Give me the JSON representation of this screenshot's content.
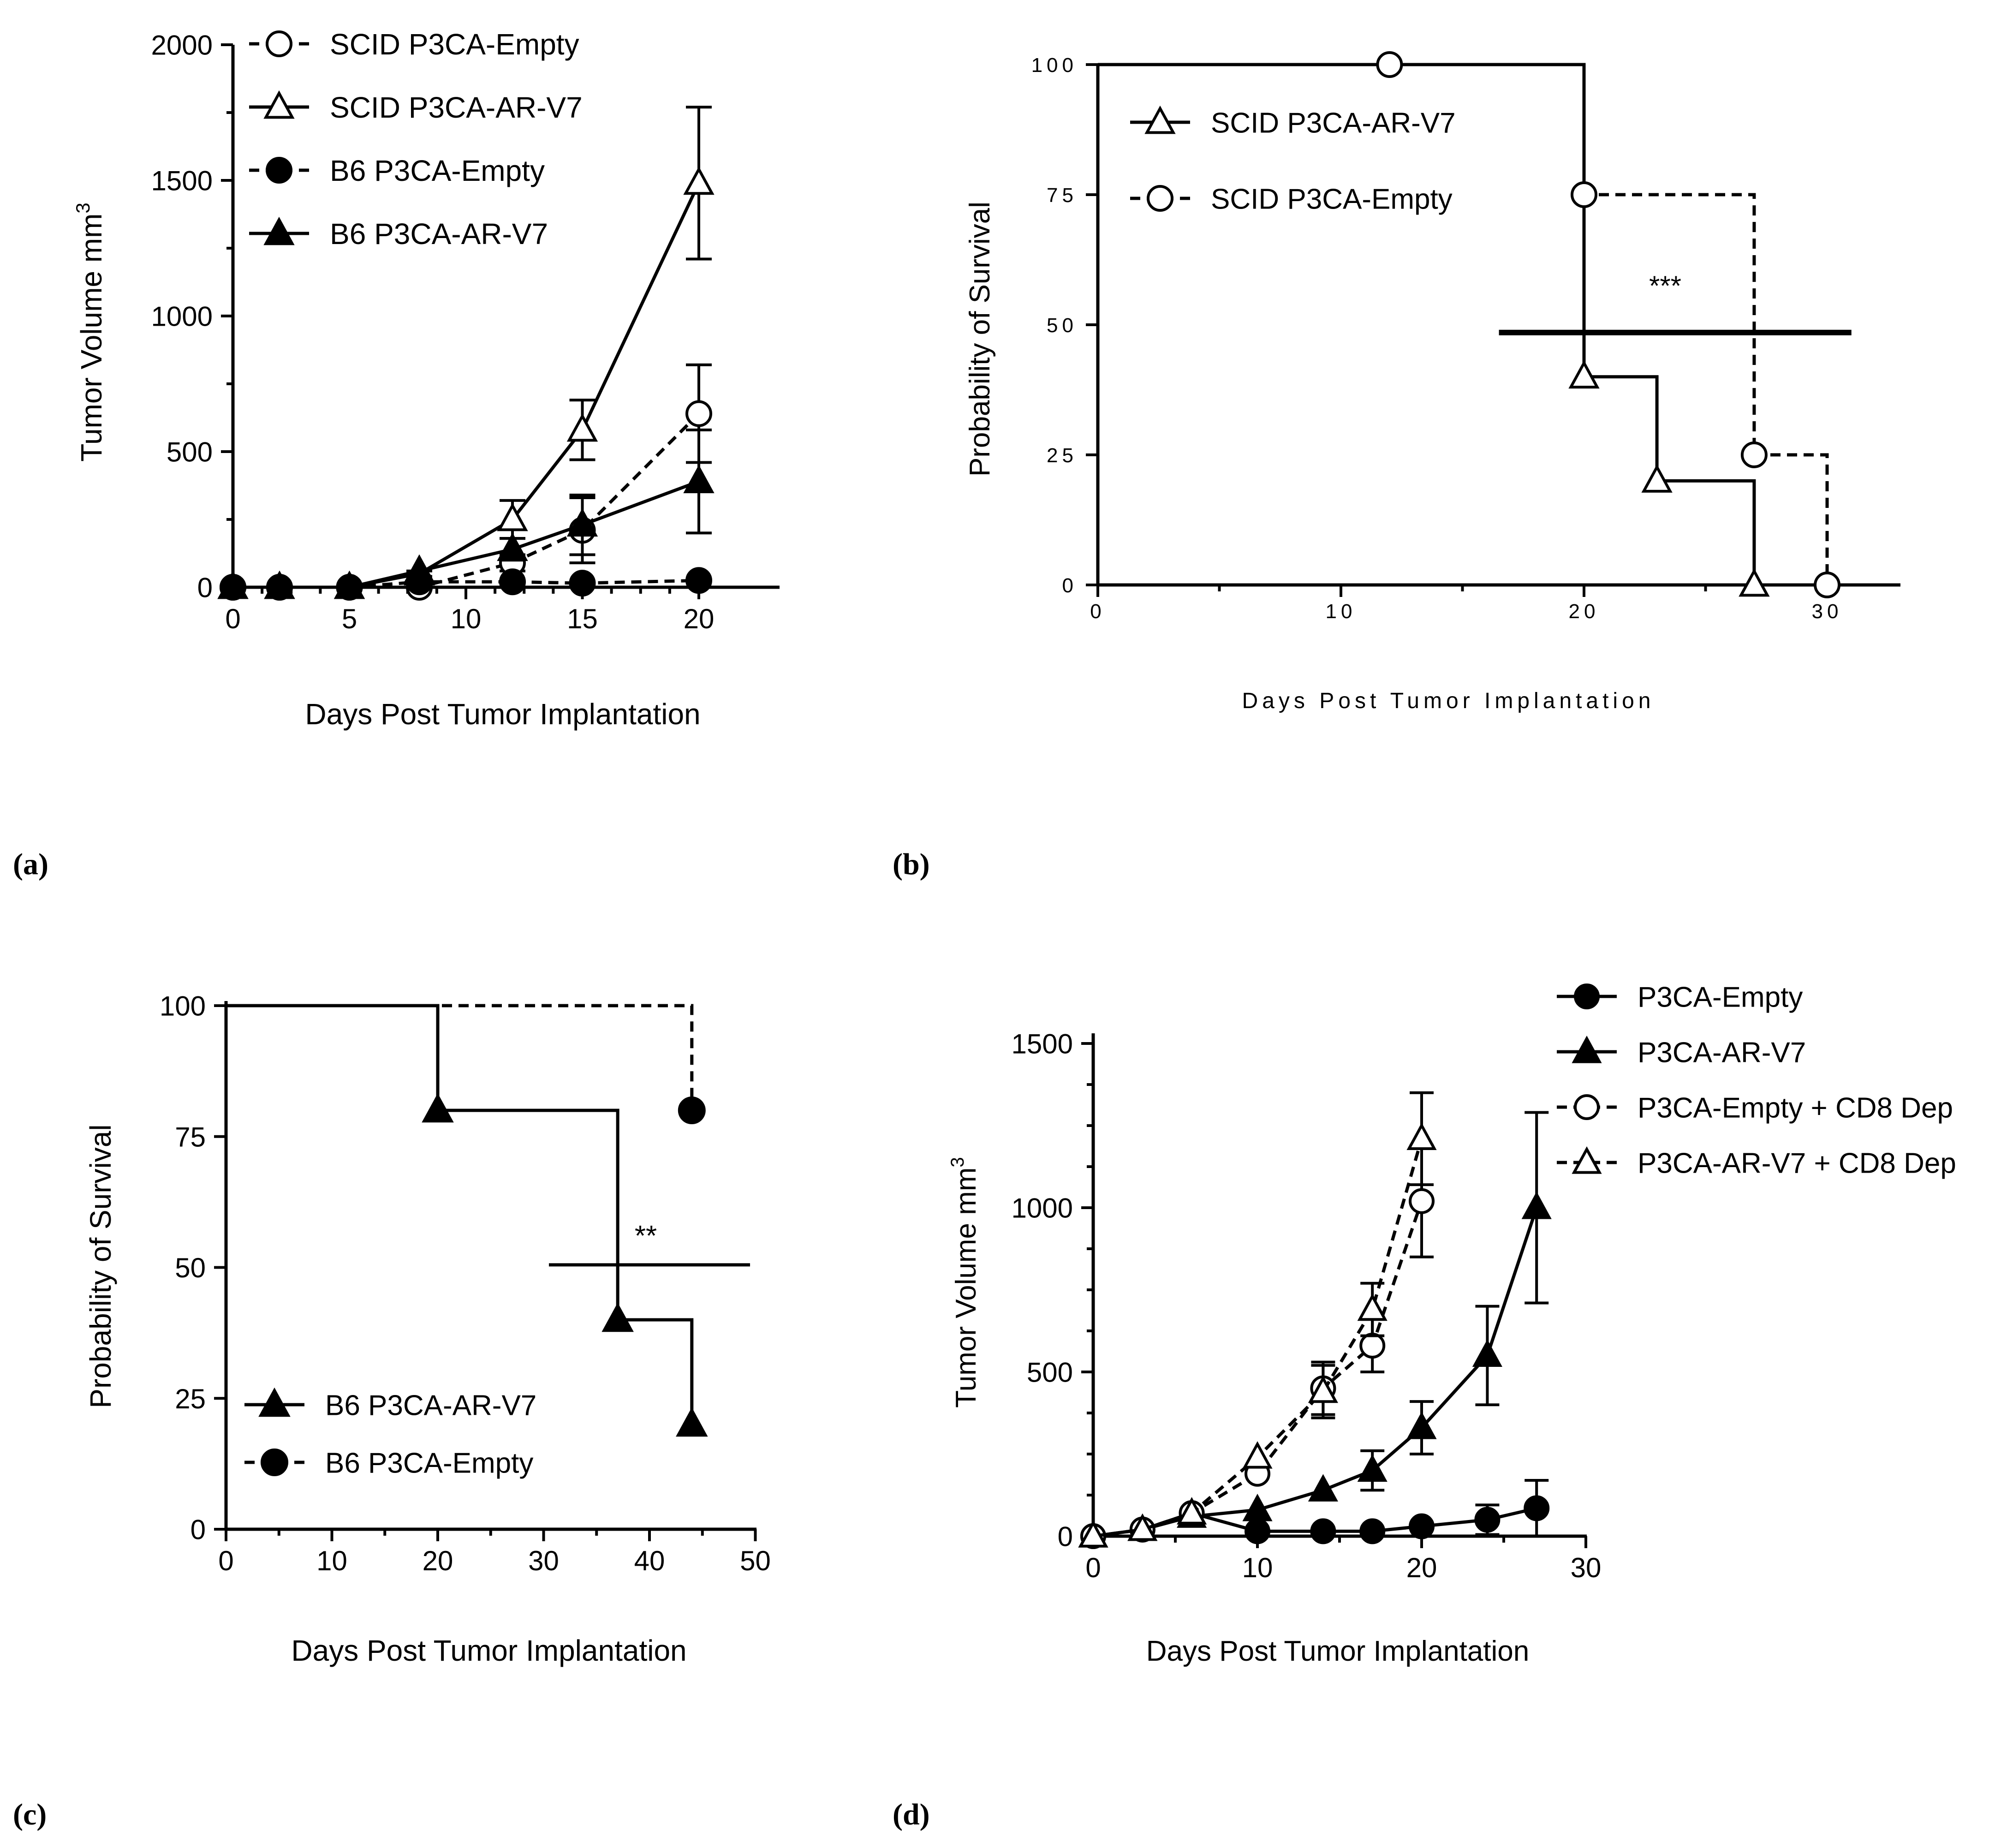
{
  "figure": {
    "panel_labels": [
      "(a)",
      "(b)",
      "(c)",
      "(d)"
    ]
  },
  "chart_data": [
    {
      "panel": "(a)",
      "type": "line",
      "xlabel": "Days Post Tumor Implantation",
      "ylabel": "Tumor Volume mm",
      "ylabel_sup": "3",
      "xlim": [
        0,
        23
      ],
      "ylim": [
        0,
        2000
      ],
      "xticks": [
        0,
        5,
        10,
        15,
        20
      ],
      "yticks": [
        0,
        500,
        1000,
        1500,
        2000
      ],
      "grid": false,
      "legend_position": "top-left",
      "series": [
        {
          "name": "SCID P3CA-Empty",
          "marker": "circle",
          "filled": false,
          "dashed": true,
          "x": [
            0,
            2,
            5,
            8,
            12,
            15,
            20
          ],
          "y": [
            0,
            0,
            0,
            0,
            90,
            210,
            640
          ],
          "err": [
            0,
            0,
            0,
            0,
            30,
            120,
            180
          ]
        },
        {
          "name": "SCID P3CA-AR-V7",
          "marker": "triangle",
          "filled": false,
          "dashed": false,
          "x": [
            0,
            2,
            5,
            8,
            12,
            15,
            20
          ],
          "y": [
            0,
            0,
            0,
            50,
            250,
            580,
            1490
          ],
          "err": [
            0,
            0,
            0,
            10,
            70,
            110,
            280
          ]
        },
        {
          "name": "B6 P3CA-Empty",
          "marker": "circle",
          "filled": true,
          "dashed": true,
          "x": [
            0,
            2,
            5,
            8,
            12,
            15,
            20
          ],
          "y": [
            0,
            0,
            0,
            20,
            20,
            15,
            25
          ],
          "err": [
            0,
            0,
            0,
            0,
            0,
            0,
            0
          ]
        },
        {
          "name": "B6 P3CA-AR-V7",
          "marker": "triangle",
          "filled": true,
          "dashed": false,
          "x": [
            0,
            2,
            5,
            8,
            12,
            15,
            20
          ],
          "y": [
            0,
            0,
            0,
            60,
            140,
            230,
            390
          ],
          "err": [
            0,
            0,
            0,
            0,
            40,
            110,
            190
          ]
        }
      ]
    },
    {
      "panel": "(b)",
      "type": "line",
      "xlabel": "Days Post Tumor Implantation",
      "ylabel": "Probability of Survival",
      "xlim": [
        0,
        33
      ],
      "ylim": [
        0,
        100
      ],
      "xticks": [
        0,
        10,
        20,
        30
      ],
      "yticks": [
        0,
        25,
        50,
        75,
        100
      ],
      "grid": false,
      "legend_position": "top-left",
      "annotation": "***",
      "series": [
        {
          "name": "SCID P3CA-AR-V7",
          "marker": "triangle",
          "filled": false,
          "dashed": false,
          "x": [
            0,
            20,
            23,
            27
          ],
          "y": [
            100,
            40,
            20,
            0
          ],
          "markers_x": [
            20,
            23,
            27
          ],
          "markers_y": [
            40,
            20,
            0
          ]
        },
        {
          "name": "SCID P3CA-Empty",
          "marker": "circle",
          "filled": false,
          "dashed": true,
          "x": [
            0,
            20,
            27,
            30
          ],
          "y": [
            100,
            75,
            25,
            0
          ],
          "markers_x": [
            12,
            20,
            27,
            30
          ],
          "markers_y": [
            100,
            75,
            25,
            0
          ]
        }
      ],
      "median_line": {
        "y": 48.5,
        "x_from": 16.5,
        "x_to": 31
      }
    },
    {
      "panel": "(c)",
      "type": "line",
      "xlabel": "Days Post Tumor Implantation",
      "ylabel": "Probability of Survival",
      "xlim": [
        0,
        50
      ],
      "ylim": [
        0,
        100
      ],
      "xticks": [
        0,
        10,
        20,
        30,
        40,
        50
      ],
      "yticks": [
        0,
        25,
        50,
        75,
        100
      ],
      "grid": false,
      "legend_position": "bottom-left",
      "annotation": "**",
      "series": [
        {
          "name": "B6 P3CA-AR-V7",
          "marker": "triangle",
          "filled": true,
          "dashed": false,
          "x": [
            0,
            20,
            37,
            44
          ],
          "y": [
            100,
            80,
            40,
            20
          ],
          "markers_x": [
            20,
            37,
            44
          ],
          "markers_y": [
            80,
            40,
            20
          ]
        },
        {
          "name": "B6 P3CA-Empty",
          "marker": "circle",
          "filled": true,
          "dashed": true,
          "x": [
            0,
            44
          ],
          "y": [
            100,
            80
          ],
          "markers_x": [
            44
          ],
          "markers_y": [
            80
          ]
        }
      ],
      "median_line": {
        "y": 50.5,
        "x_from": 30.5,
        "x_to": 49.5
      }
    },
    {
      "panel": "(d)",
      "type": "line",
      "xlabel": "Days Post Tumor Implantation",
      "ylabel": "Tumor Volume mm",
      "ylabel_sup": "3",
      "xlim": [
        0,
        30
      ],
      "ylim": [
        0,
        1500
      ],
      "xticks": [
        0,
        10,
        20,
        30
      ],
      "yticks": [
        0,
        500,
        1000,
        1500
      ],
      "grid": false,
      "legend_position": "top-right",
      "series": [
        {
          "name": "P3CA-Empty",
          "marker": "circle",
          "filled": true,
          "dashed": false,
          "x": [
            0,
            3,
            6,
            10,
            14,
            17,
            20,
            24,
            27
          ],
          "y": [
            0,
            20,
            70,
            15,
            15,
            15,
            30,
            50,
            85
          ],
          "err": [
            0,
            0,
            0,
            0,
            0,
            0,
            0,
            45,
            85
          ]
        },
        {
          "name": "P3CA-AR-V7",
          "marker": "triangle",
          "filled": true,
          "dashed": false,
          "x": [
            0,
            3,
            6,
            10,
            14,
            17,
            20,
            24,
            27
          ],
          "y": [
            0,
            20,
            60,
            80,
            140,
            200,
            330,
            550,
            1000
          ],
          "err": [
            0,
            0,
            0,
            0,
            0,
            60,
            80,
            150,
            290
          ]
        },
        {
          "name": "P3CA-Empty + CD8 Dep",
          "marker": "circle",
          "filled": false,
          "dashed": true,
          "x": [
            0,
            3,
            6,
            10,
            14,
            17,
            20
          ],
          "y": [
            0,
            20,
            70,
            190,
            450,
            580,
            1020
          ],
          "err": [
            0,
            0,
            0,
            0,
            80,
            80,
            170
          ]
        },
        {
          "name": "P3CA-AR-V7 + CD8 Dep",
          "marker": "triangle",
          "filled": false,
          "dashed": true,
          "x": [
            0,
            3,
            6,
            10,
            14,
            17,
            20
          ],
          "y": [
            0,
            20,
            70,
            240,
            440,
            690,
            1210
          ],
          "err": [
            0,
            0,
            0,
            0,
            80,
            80,
            140
          ]
        }
      ]
    }
  ]
}
